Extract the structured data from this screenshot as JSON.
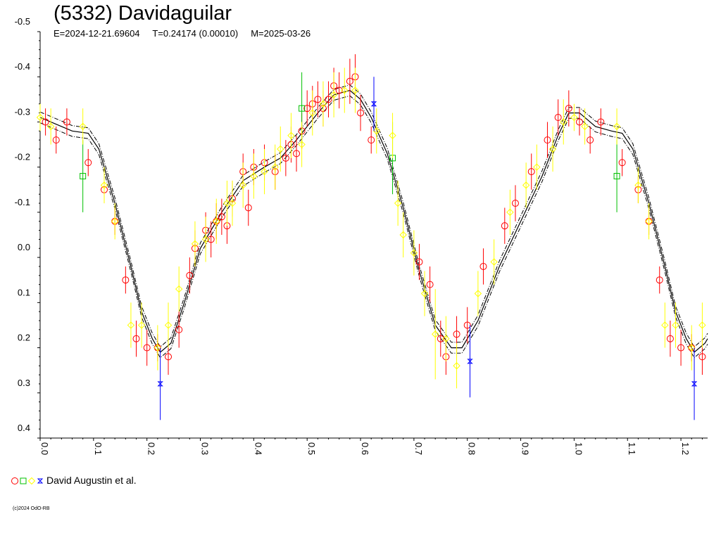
{
  "header": {
    "title": "(5332) Davidaguilar",
    "epoch": "E=2024-12-21.69604",
    "period": "T=0.24174 (0.00010)",
    "modified": "M=2025-03-26"
  },
  "legend": {
    "label": "David Augustin et al.",
    "markers": [
      {
        "shape": "circle",
        "color": "#ff0000"
      },
      {
        "shape": "square",
        "color": "#00c000"
      },
      {
        "shape": "diamond",
        "color": "#ffff00"
      },
      {
        "shape": "star",
        "color": "#0000ff"
      }
    ]
  },
  "footer": {
    "copyright": "(c)2024 OdO-RB"
  },
  "chart_data": {
    "type": "scatter",
    "title": "(5332) Davidaguilar",
    "xlabel": "",
    "ylabel": "",
    "xlim": [
      0.0,
      1.25
    ],
    "ylim": [
      0.4,
      -0.5
    ],
    "x_ticks": [
      "0.0",
      "0.1",
      "0.2",
      "0.3",
      "0.4",
      "0.5",
      "0.6",
      "0.7",
      "0.8",
      "0.9",
      "1.0",
      "1.1",
      "1.2"
    ],
    "y_ticks": [
      "-0.5",
      "-0.4",
      "-0.3",
      "-0.2",
      "-0.1",
      "0.0",
      "0.1",
      "0.2",
      "0.3",
      "0.4"
    ],
    "grid": false,
    "fit_curve": {
      "style": "solid with dash-dot envelope",
      "color": "#000000",
      "points": [
        [
          0.0,
          -0.31
        ],
        [
          0.03,
          -0.295
        ],
        [
          0.06,
          -0.28
        ],
        [
          0.09,
          -0.275
        ],
        [
          0.11,
          -0.24
        ],
        [
          0.14,
          -0.12
        ],
        [
          0.17,
          0.02
        ],
        [
          0.19,
          0.12
        ],
        [
          0.21,
          0.18
        ],
        [
          0.225,
          0.21
        ],
        [
          0.245,
          0.19
        ],
        [
          0.27,
          0.1
        ],
        [
          0.3,
          -0.02
        ],
        [
          0.34,
          -0.1
        ],
        [
          0.38,
          -0.17
        ],
        [
          0.42,
          -0.2
        ],
        [
          0.45,
          -0.22
        ],
        [
          0.48,
          -0.26
        ],
        [
          0.52,
          -0.32
        ],
        [
          0.55,
          -0.36
        ],
        [
          0.58,
          -0.37
        ],
        [
          0.6,
          -0.35
        ],
        [
          0.62,
          -0.31
        ],
        [
          0.65,
          -0.23
        ],
        [
          0.68,
          -0.11
        ],
        [
          0.71,
          0.03
        ],
        [
          0.74,
          0.15
        ],
        [
          0.77,
          0.2
        ],
        [
          0.79,
          0.2
        ],
        [
          0.82,
          0.14
        ],
        [
          0.86,
          0.02
        ],
        [
          0.9,
          -0.08
        ],
        [
          0.94,
          -0.18
        ],
        [
          0.97,
          -0.27
        ],
        [
          0.99,
          -0.32
        ],
        [
          1.01,
          -0.32
        ],
        [
          1.04,
          -0.29
        ],
        [
          1.07,
          -0.28
        ],
        [
          1.09,
          -0.275
        ],
        [
          1.11,
          -0.24
        ],
        [
          1.14,
          -0.12
        ],
        [
          1.17,
          0.02
        ],
        [
          1.19,
          0.12
        ],
        [
          1.21,
          0.18
        ],
        [
          1.225,
          0.21
        ],
        [
          1.245,
          0.19
        ],
        [
          1.25,
          0.18
        ]
      ]
    },
    "series": [
      {
        "marker": "circle",
        "color": "#ff0000",
        "points": [
          [
            0.01,
            -0.3,
            0.03
          ],
          [
            0.03,
            -0.26,
            0.03
          ],
          [
            0.05,
            -0.3,
            0.03
          ],
          [
            0.09,
            -0.21,
            0.03
          ],
          [
            0.12,
            -0.15,
            0.03
          ],
          [
            0.14,
            -0.08,
            0.03
          ],
          [
            0.16,
            0.05,
            0.03
          ],
          [
            0.18,
            0.18,
            0.04
          ],
          [
            0.2,
            0.2,
            0.04
          ],
          [
            0.22,
            0.2,
            0.03
          ],
          [
            0.24,
            0.22,
            0.04
          ],
          [
            0.26,
            0.16,
            0.04
          ],
          [
            0.28,
            0.04,
            0.04
          ],
          [
            0.29,
            -0.02,
            0.04
          ],
          [
            0.31,
            -0.06,
            0.04
          ],
          [
            0.32,
            -0.04,
            0.04
          ],
          [
            0.33,
            -0.08,
            0.04
          ],
          [
            0.34,
            -0.09,
            0.04
          ],
          [
            0.35,
            -0.07,
            0.04
          ],
          [
            0.36,
            -0.13,
            0.04
          ],
          [
            0.38,
            -0.19,
            0.04
          ],
          [
            0.39,
            -0.11,
            0.04
          ],
          [
            0.4,
            -0.2,
            0.04
          ],
          [
            0.42,
            -0.21,
            0.04
          ],
          [
            0.44,
            -0.19,
            0.04
          ],
          [
            0.46,
            -0.22,
            0.04
          ],
          [
            0.47,
            -0.25,
            0.04
          ],
          [
            0.48,
            -0.23,
            0.04
          ],
          [
            0.49,
            -0.28,
            0.04
          ],
          [
            0.5,
            -0.33,
            0.04
          ],
          [
            0.51,
            -0.34,
            0.04
          ],
          [
            0.52,
            -0.35,
            0.04
          ],
          [
            0.53,
            -0.33,
            0.04
          ],
          [
            0.54,
            -0.35,
            0.04
          ],
          [
            0.55,
            -0.38,
            0.04
          ],
          [
            0.56,
            -0.37,
            0.04
          ],
          [
            0.58,
            -0.39,
            0.05
          ],
          [
            0.59,
            -0.4,
            0.05
          ],
          [
            0.6,
            -0.32,
            0.04
          ],
          [
            0.62,
            -0.26,
            0.03
          ],
          [
            0.71,
            0.01,
            0.04
          ],
          [
            0.73,
            0.06,
            0.04
          ],
          [
            0.75,
            0.18,
            0.04
          ],
          [
            0.76,
            0.22,
            0.04
          ],
          [
            0.78,
            0.17,
            0.04
          ],
          [
            0.8,
            0.15,
            0.04
          ],
          [
            0.83,
            0.02,
            0.04
          ],
          [
            0.87,
            -0.07,
            0.04
          ],
          [
            0.89,
            -0.12,
            0.04
          ],
          [
            0.92,
            -0.19,
            0.04
          ],
          [
            0.95,
            -0.26,
            0.04
          ],
          [
            0.97,
            -0.31,
            0.04
          ],
          [
            0.99,
            -0.33,
            0.04
          ],
          [
            1.01,
            -0.3,
            0.03
          ],
          [
            1.03,
            -0.26,
            0.03
          ],
          [
            1.05,
            -0.3,
            0.03
          ],
          [
            1.09,
            -0.21,
            0.03
          ],
          [
            1.12,
            -0.15,
            0.03
          ],
          [
            1.14,
            -0.08,
            0.03
          ],
          [
            1.16,
            0.05,
            0.03
          ],
          [
            1.18,
            0.18,
            0.04
          ],
          [
            1.2,
            0.2,
            0.04
          ],
          [
            1.22,
            0.2,
            0.03
          ],
          [
            1.24,
            0.22,
            0.04
          ]
        ]
      },
      {
        "marker": "square",
        "color": "#00c000",
        "points": [
          [
            0.08,
            -0.18,
            0.08
          ],
          [
            0.49,
            -0.33,
            0.08
          ],
          [
            0.66,
            -0.22,
            0.08
          ],
          [
            1.08,
            -0.18,
            0.08
          ]
        ]
      },
      {
        "marker": "diamond",
        "color": "#ffff00",
        "points": [
          [
            0.0,
            -0.31,
            0.03
          ],
          [
            0.02,
            -0.29,
            0.04
          ],
          [
            0.08,
            -0.29,
            0.04
          ],
          [
            0.12,
            -0.16,
            0.04
          ],
          [
            0.14,
            -0.08,
            0.04
          ],
          [
            0.17,
            0.15,
            0.05
          ],
          [
            0.19,
            0.15,
            0.05
          ],
          [
            0.22,
            0.2,
            0.05
          ],
          [
            0.24,
            0.15,
            0.05
          ],
          [
            0.26,
            0.07,
            0.05
          ],
          [
            0.29,
            -0.03,
            0.05
          ],
          [
            0.31,
            -0.04,
            0.05
          ],
          [
            0.33,
            -0.08,
            0.05
          ],
          [
            0.35,
            -0.12,
            0.05
          ],
          [
            0.36,
            -0.12,
            0.05
          ],
          [
            0.38,
            -0.16,
            0.05
          ],
          [
            0.4,
            -0.18,
            0.05
          ],
          [
            0.42,
            -0.19,
            0.05
          ],
          [
            0.44,
            -0.2,
            0.05
          ],
          [
            0.45,
            -0.24,
            0.05
          ],
          [
            0.47,
            -0.27,
            0.05
          ],
          [
            0.49,
            -0.25,
            0.05
          ],
          [
            0.51,
            -0.32,
            0.05
          ],
          [
            0.53,
            -0.34,
            0.05
          ],
          [
            0.55,
            -0.36,
            0.05
          ],
          [
            0.57,
            -0.37,
            0.05
          ],
          [
            0.59,
            -0.37,
            0.05
          ],
          [
            0.63,
            -0.28,
            0.05
          ],
          [
            0.66,
            -0.27,
            0.05
          ],
          [
            0.67,
            -0.12,
            0.05
          ],
          [
            0.68,
            -0.05,
            0.05
          ],
          [
            0.7,
            -0.01,
            0.05
          ],
          [
            0.72,
            0.08,
            0.05
          ],
          [
            0.74,
            0.17,
            0.1
          ],
          [
            0.76,
            0.18,
            0.05
          ],
          [
            0.78,
            0.24,
            0.05
          ],
          [
            0.82,
            0.08,
            0.05
          ],
          [
            0.85,
            0.01,
            0.05
          ],
          [
            0.88,
            -0.1,
            0.05
          ],
          [
            0.91,
            -0.16,
            0.05
          ],
          [
            0.93,
            -0.2,
            0.05
          ],
          [
            0.96,
            -0.24,
            0.05
          ],
          [
            0.98,
            -0.3,
            0.05
          ],
          [
            1.0,
            -0.31,
            0.03
          ],
          [
            1.02,
            -0.29,
            0.04
          ],
          [
            1.08,
            -0.29,
            0.04
          ],
          [
            1.12,
            -0.16,
            0.04
          ],
          [
            1.14,
            -0.08,
            0.04
          ],
          [
            1.17,
            0.15,
            0.05
          ],
          [
            1.19,
            0.15,
            0.05
          ],
          [
            1.22,
            0.2,
            0.05
          ],
          [
            1.24,
            0.15,
            0.05
          ]
        ]
      },
      {
        "marker": "star",
        "color": "#0000ff",
        "points": [
          [
            0.225,
            0.28,
            0.08
          ],
          [
            0.625,
            -0.34,
            0.06
          ],
          [
            0.805,
            0.23,
            0.08
          ],
          [
            1.225,
            0.28,
            0.08
          ]
        ]
      }
    ]
  }
}
